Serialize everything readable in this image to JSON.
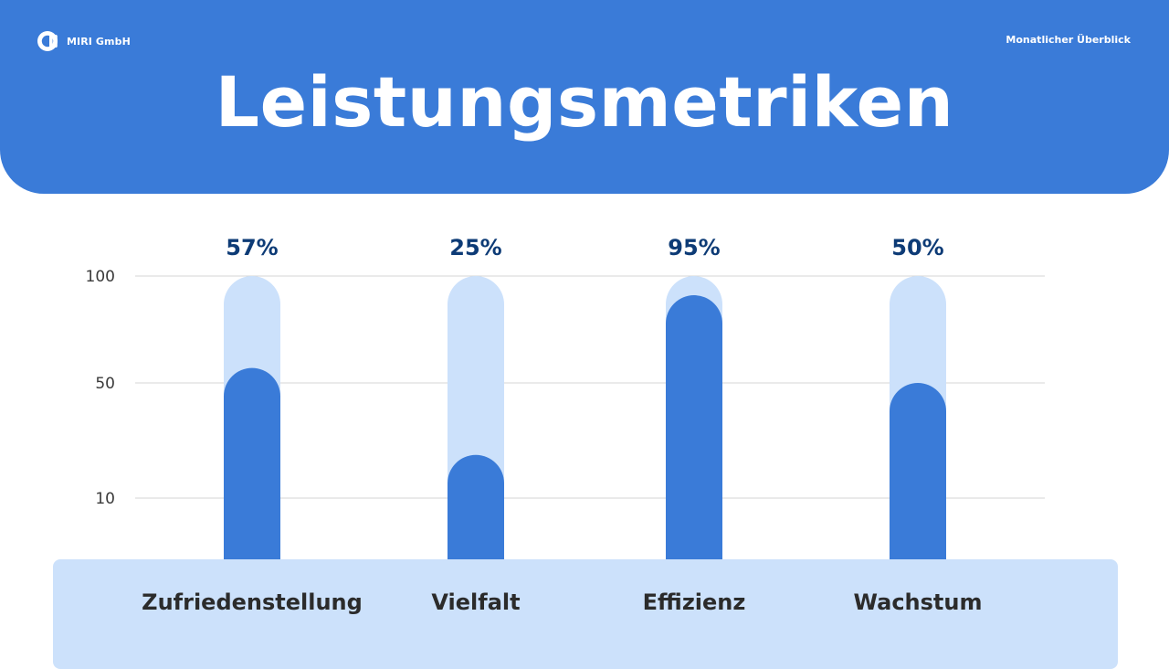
{
  "brand": {
    "name": "MIRI GmbH",
    "logo_icon": "miri-logo-icon"
  },
  "header": {
    "subtitle": "Monatlicher Überblick",
    "title": "Leistungsmetriken"
  },
  "colors": {
    "primary": "#3a7bd8",
    "track": "#cce1fb",
    "value_text": "#0d3b76",
    "axis_text": "#3a3a3a",
    "category_text": "#2b2b2b",
    "grid": "#d6d6d6",
    "white": "#ffffff"
  },
  "chart_data": {
    "type": "bar",
    "title": "",
    "xlabel": "",
    "ylabel": "",
    "categories": [
      "Zufriedenstellung",
      "Vielfalt",
      "Effizienz",
      "Wachstum"
    ],
    "values": [
      57,
      25,
      95,
      50
    ],
    "value_labels": [
      "57%",
      "25%",
      "95%",
      "50%"
    ],
    "yticks": [
      10,
      50,
      100
    ],
    "ylim": [
      0,
      100
    ],
    "grid": true,
    "legend": "none"
  }
}
